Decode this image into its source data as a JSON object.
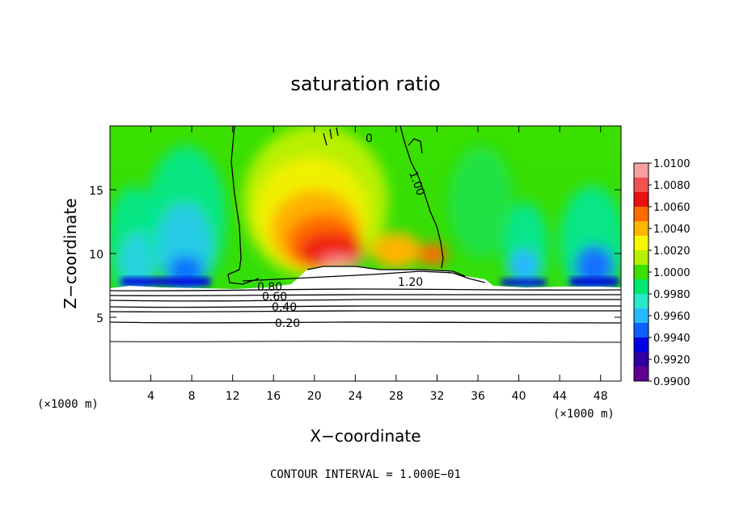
{
  "chart_data": {
    "type": "heatmap",
    "title": "saturation ratio",
    "xlabel": "X−coordinate",
    "ylabel": "Z−coordinate",
    "x_unit": "(×1000 m)",
    "x_unit_right": "(×1000 m)",
    "xlim": [
      0,
      50
    ],
    "ylim": [
      0,
      20
    ],
    "x_ticks": [
      4,
      8,
      12,
      16,
      20,
      24,
      28,
      32,
      36,
      40,
      44,
      48
    ],
    "y_ticks": [
      5,
      10,
      15
    ],
    "colorbar": {
      "ticks": [
        "1.0100",
        "1.0080",
        "1.0060",
        "1.0040",
        "1.0020",
        "1.0000",
        "0.9980",
        "0.9960",
        "0.9940",
        "0.9920",
        "0.9900"
      ],
      "colors": [
        "#f7a0a0",
        "#f35050",
        "#e81010",
        "#ff6a00",
        "#ffb400",
        "#f7f700",
        "#b5f000",
        "#3ae000",
        "#00e870",
        "#28e8c8",
        "#28b8ff",
        "#1060ff",
        "#0000e0",
        "#3000a0",
        "#600090"
      ]
    },
    "contour_labels": [
      "0",
      "1.00",
      "1.20",
      "0.60",
      "0.40",
      "0.20",
      "0.80"
    ],
    "footer": "CONTOUR INTERVAL = 1.000E−01",
    "colors": {
      "background": "#00e000",
      "cloud_free": "#ffffff",
      "contour": "#000000"
    }
  }
}
